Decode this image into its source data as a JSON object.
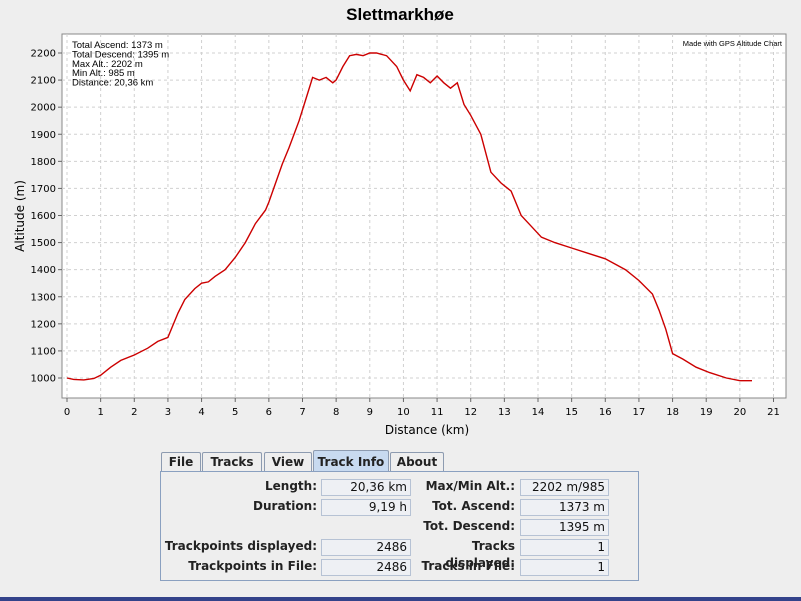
{
  "chart_data": {
    "type": "line",
    "title": "Slettmarkhøe",
    "xlabel": "Distance (km)",
    "ylabel": "Altitude (m)",
    "xlim": [
      0,
      21.5
    ],
    "ylim": [
      940,
      2270
    ],
    "xticks": [
      0,
      1,
      2,
      3,
      4,
      5,
      6,
      7,
      8,
      9,
      10,
      11,
      12,
      13,
      14,
      15,
      16,
      17,
      18,
      19,
      20,
      21
    ],
    "yticks": [
      1000,
      1100,
      1200,
      1300,
      1400,
      1500,
      1600,
      1700,
      1800,
      1900,
      2000,
      2100,
      2200
    ],
    "grid": true,
    "line_color": "#cc0000",
    "credit": "Made with GPS Altitude Chart",
    "info_lines": [
      "Total Ascend: 1373 m",
      "Total Descend: 1395 m",
      "Max Alt.: 2202 m",
      "Min Alt.: 985 m",
      "Distance: 20,36 km"
    ],
    "series": [
      {
        "x": [
          0,
          0.2,
          0.5,
          0.8,
          1.0,
          1.3,
          1.6,
          2.0,
          2.4,
          2.7,
          3.0,
          3.3,
          3.5,
          3.8,
          4.0,
          4.2,
          4.4,
          4.7,
          5.0,
          5.3,
          5.6,
          5.9,
          6.0,
          6.2,
          6.4,
          6.6,
          6.9,
          7.1,
          7.3,
          7.5,
          7.7,
          7.9,
          8.0,
          8.2,
          8.4,
          8.6,
          8.8,
          9.0,
          9.2,
          9.5,
          9.8,
          10.0,
          10.2,
          10.4,
          10.6,
          10.8,
          11.0,
          11.2,
          11.4,
          11.6,
          11.8,
          12.0,
          12.3,
          12.6,
          12.9,
          13.2,
          13.5,
          13.8,
          14.1,
          14.5,
          15.0,
          15.5,
          16.0,
          16.3,
          16.6,
          17.0,
          17.4,
          17.6,
          17.8,
          18.0,
          18.3,
          18.7,
          19.1,
          19.6,
          20.0,
          20.36
        ],
        "y": [
          1000,
          995,
          993,
          998,
          1010,
          1040,
          1065,
          1085,
          1110,
          1135,
          1150,
          1240,
          1290,
          1330,
          1350,
          1355,
          1375,
          1400,
          1445,
          1500,
          1570,
          1620,
          1650,
          1720,
          1790,
          1850,
          1950,
          2030,
          2110,
          2100,
          2110,
          2090,
          2100,
          2150,
          2190,
          2195,
          2190,
          2200,
          2200,
          2190,
          2150,
          2100,
          2060,
          2120,
          2110,
          2090,
          2115,
          2090,
          2070,
          2090,
          2010,
          1970,
          1900,
          1760,
          1720,
          1690,
          1600,
          1560,
          1520,
          1500,
          1480,
          1460,
          1440,
          1420,
          1400,
          1360,
          1310,
          1250,
          1180,
          1090,
          1070,
          1040,
          1020,
          1000,
          990,
          990
        ]
      }
    ]
  },
  "tabs": [
    "File",
    "Tracks",
    "View",
    "Track Info",
    "About"
  ],
  "active_tab": "Track Info",
  "track_info": {
    "length_label": "Length:",
    "length_value": "20,36 km",
    "duration_label": "Duration:",
    "duration_value": "9,19 h",
    "trackpoints_displayed_label": "Trackpoints displayed:",
    "trackpoints_displayed_value": "2486",
    "trackpoints_in_file_label": "Trackpoints in File:",
    "trackpoints_in_file_value": "2486",
    "max_min_alt_label": "Max/Min Alt.:",
    "max_min_alt_value": "2202 m/985 m",
    "tot_ascend_label": "Tot. Ascend:",
    "tot_ascend_value": "1373 m",
    "tot_descend_label": "Tot. Descend:",
    "tot_descend_value": "1395 m",
    "tracks_displayed_label": "Tracks displayed:",
    "tracks_displayed_value": "1",
    "tracks_in_file_label": "Tracks in File:",
    "tracks_in_file_value": "1"
  }
}
